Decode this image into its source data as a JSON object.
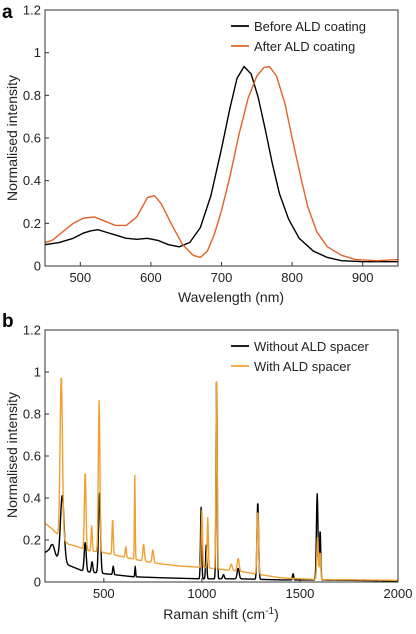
{
  "colors": {
    "black": "#000000",
    "orange_a": "#e2622a",
    "orange_b": "#f0a030"
  },
  "chart_data": [
    {
      "panel_label": "a",
      "type": "line",
      "title": "",
      "xlabel": "Wavelength (nm)",
      "ylabel": "Normalised intensity",
      "xlim": [
        450,
        950
      ],
      "ylim": [
        0,
        1.2
      ],
      "x_ticks": [
        500,
        600,
        700,
        800,
        900
      ],
      "y_ticks": [
        0,
        0.2,
        0.4,
        0.6,
        0.8,
        1,
        1.2
      ],
      "y_tick_labels": [
        "0",
        "0.2",
        "0.4",
        "0.6",
        "0.8",
        "1",
        "1.2"
      ],
      "grid": false,
      "legend_placement": "top-right",
      "series": [
        {
          "name": "Before ALD coating",
          "color": "#000000",
          "points": [
            [
              450,
              0.1
            ],
            [
              470,
              0.11
            ],
            [
              490,
              0.13
            ],
            [
              505,
              0.155
            ],
            [
              515,
              0.165
            ],
            [
              525,
              0.17
            ],
            [
              535,
              0.16
            ],
            [
              550,
              0.145
            ],
            [
              565,
              0.13
            ],
            [
              580,
              0.125
            ],
            [
              595,
              0.13
            ],
            [
              610,
              0.12
            ],
            [
              625,
              0.1
            ],
            [
              640,
              0.09
            ],
            [
              655,
              0.11
            ],
            [
              670,
              0.18
            ],
            [
              685,
              0.33
            ],
            [
              700,
              0.55
            ],
            [
              712,
              0.74
            ],
            [
              722,
              0.88
            ],
            [
              732,
              0.935
            ],
            [
              742,
              0.9
            ],
            [
              752,
              0.79
            ],
            [
              762,
              0.64
            ],
            [
              772,
              0.48
            ],
            [
              782,
              0.34
            ],
            [
              795,
              0.22
            ],
            [
              810,
              0.13
            ],
            [
              830,
              0.07
            ],
            [
              850,
              0.04
            ],
            [
              870,
              0.025
            ],
            [
              900,
              0.02
            ],
            [
              950,
              0.02
            ]
          ]
        },
        {
          "name": "After ALD coating",
          "color": "#e2622a",
          "points": [
            [
              450,
              0.11
            ],
            [
              460,
              0.12
            ],
            [
              475,
              0.16
            ],
            [
              490,
              0.2
            ],
            [
              505,
              0.225
            ],
            [
              520,
              0.23
            ],
            [
              535,
              0.21
            ],
            [
              550,
              0.19
            ],
            [
              565,
              0.19
            ],
            [
              580,
              0.23
            ],
            [
              595,
              0.32
            ],
            [
              605,
              0.33
            ],
            [
              615,
              0.29
            ],
            [
              630,
              0.19
            ],
            [
              645,
              0.1
            ],
            [
              660,
              0.05
            ],
            [
              670,
              0.04
            ],
            [
              680,
              0.07
            ],
            [
              690,
              0.15
            ],
            [
              700,
              0.26
            ],
            [
              712,
              0.42
            ],
            [
              725,
              0.62
            ],
            [
              738,
              0.79
            ],
            [
              750,
              0.89
            ],
            [
              760,
              0.93
            ],
            [
              768,
              0.935
            ],
            [
              778,
              0.89
            ],
            [
              790,
              0.76
            ],
            [
              800,
              0.6
            ],
            [
              812,
              0.42
            ],
            [
              822,
              0.28
            ],
            [
              835,
              0.16
            ],
            [
              850,
              0.09
            ],
            [
              870,
              0.05
            ],
            [
              890,
              0.03
            ],
            [
              920,
              0.025
            ],
            [
              950,
              0.03
            ]
          ]
        }
      ]
    },
    {
      "panel_label": "b",
      "type": "line",
      "title": "",
      "xlabel": "Raman shift (cm",
      "xlabel_sup": "-1",
      "xlabel_close": ")",
      "ylabel": "Normalised intensity",
      "xlim": [
        200,
        2000
      ],
      "ylim": [
        0,
        1.2
      ],
      "x_ticks": [
        500,
        1000,
        1500,
        2000
      ],
      "y_ticks": [
        0,
        0.2,
        0.4,
        0.6,
        0.8,
        1,
        1.2
      ],
      "y_tick_labels": [
        "0",
        "0.2",
        "0.4",
        "0.6",
        "0.8",
        "1",
        "1.2"
      ],
      "grid": false,
      "legend_placement": "top-right",
      "series": [
        {
          "name": "Without ALD spacer",
          "color": "#000000",
          "baseline": [
            [
              200,
              0.14
            ],
            [
              230,
              0.16
            ],
            [
              260,
              0.12
            ],
            [
              320,
              0.08
            ],
            [
              400,
              0.05
            ],
            [
              500,
              0.04
            ],
            [
              650,
              0.025
            ],
            [
              800,
              0.02
            ],
            [
              1000,
              0.015
            ],
            [
              1200,
              0.015
            ],
            [
              1400,
              0.01
            ],
            [
              1600,
              0.01
            ],
            [
              2000,
              0.005
            ]
          ],
          "peaks": [
            [
              240,
              0.03,
              8
            ],
            [
              288,
              0.31,
              9
            ],
            [
              405,
              0.14,
              5
            ],
            [
              440,
              0.05,
              4
            ],
            [
              478,
              0.38,
              5
            ],
            [
              548,
              0.04,
              3
            ],
            [
              660,
              0.05,
              2
            ],
            [
              996,
              0.34,
              3
            ],
            [
              1022,
              0.16,
              3
            ],
            [
              1075,
              0.985,
              3
            ],
            [
              1110,
              0.02,
              4
            ],
            [
              1185,
              0.05,
              5
            ],
            [
              1285,
              0.37,
              4
            ],
            [
              1465,
              0.03,
              3
            ],
            [
              1588,
              0.41,
              4
            ],
            [
              1603,
              0.24,
              3
            ]
          ]
        },
        {
          "name": "With ALD spacer",
          "color": "#f0a030",
          "baseline": [
            [
              200,
              0.28
            ],
            [
              240,
              0.25
            ],
            [
              270,
              0.22
            ],
            [
              320,
              0.18
            ],
            [
              360,
              0.17
            ],
            [
              420,
              0.15
            ],
            [
              500,
              0.14
            ],
            [
              600,
              0.12
            ],
            [
              700,
              0.1
            ],
            [
              800,
              0.085
            ],
            [
              900,
              0.075
            ],
            [
              1000,
              0.07
            ],
            [
              1100,
              0.06
            ],
            [
              1200,
              0.05
            ],
            [
              1300,
              0.035
            ],
            [
              1400,
              0.02
            ],
            [
              1500,
              0.015
            ],
            [
              1600,
              0.012
            ],
            [
              1800,
              0.01
            ],
            [
              2000,
              0.008
            ]
          ],
          "peaks": [
            [
              283,
              0.77,
              6
            ],
            [
              405,
              0.37,
              4
            ],
            [
              438,
              0.12,
              3
            ],
            [
              476,
              0.72,
              4
            ],
            [
              545,
              0.17,
              3
            ],
            [
              612,
              0.05,
              3
            ],
            [
              658,
              0.4,
              2
            ],
            [
              703,
              0.08,
              4
            ],
            [
              750,
              0.06,
              4
            ],
            [
              1000,
              0.27,
              3
            ],
            [
              1030,
              0.24,
              3
            ],
            [
              1075,
              0.94,
              3
            ],
            [
              1150,
              0.03,
              5
            ],
            [
              1185,
              0.06,
              5
            ],
            [
              1285,
              0.3,
              4
            ],
            [
              1590,
              0.2,
              4
            ],
            [
              1603,
              0.13,
              3
            ]
          ]
        }
      ]
    }
  ]
}
